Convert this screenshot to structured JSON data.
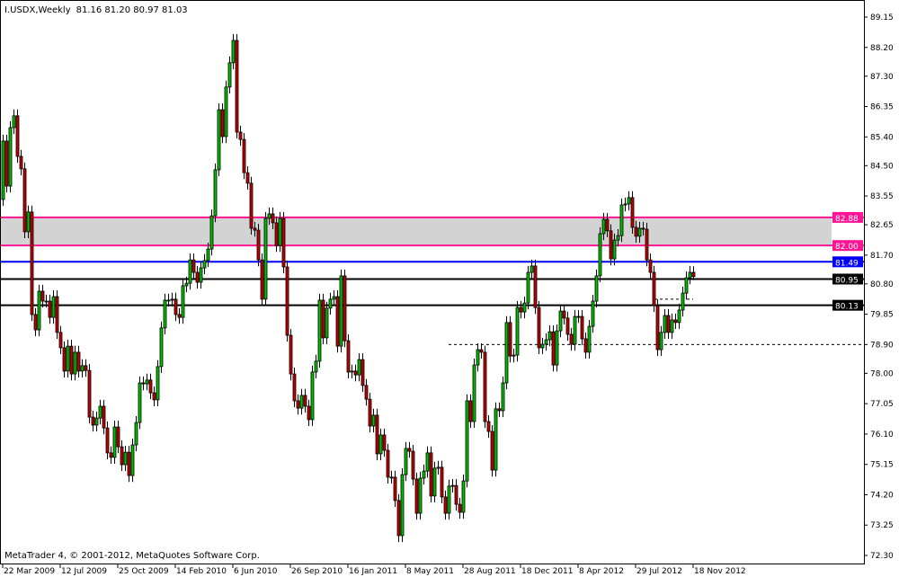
{
  "header": {
    "symbol_timeframe": "I.USDX,Weekly",
    "ohlc_text": "81.16 81.20 80.97 81.03"
  },
  "copyright": "MetaTrader 4, © 2001-2012, MetaQuotes Software Corp.",
  "colors": {
    "bull": "#00c000",
    "bear": "#c00000",
    "resistance_zone": "#d3d3d3",
    "magenta_line": "#ff1493",
    "blue_line": "#0000ff",
    "black_line": "#000000"
  },
  "chart_data": {
    "type": "candlestick",
    "timeframe": "Weekly",
    "ylim": [
      72.3,
      89.15
    ],
    "grid": false,
    "y_ticks": [
      "89.15",
      "88.20",
      "87.30",
      "86.35",
      "85.40",
      "84.50",
      "83.55",
      "82.65",
      "81.70",
      "80.80",
      "79.85",
      "78.90",
      "78.00",
      "77.05",
      "76.10",
      "75.15",
      "74.20",
      "73.25",
      "72.30"
    ],
    "x_ticks": [
      "22 Mar 2009",
      "12 Jul 2009",
      "25 Oct 2009",
      "14 Feb 2010",
      "6 Jun 2010",
      "26 Sep 2010",
      "16 Jan 2011",
      "8 May 2011",
      "28 Aug 2011",
      "18 Dec 2011",
      "8 Apr 2012",
      "29 Jul 2012",
      "18 Nov 2012"
    ],
    "first_open": 83.44,
    "closes": [
      85.27,
      83.86,
      85.69,
      86.06,
      84.79,
      84.4,
      82.43,
      83.05,
      79.84,
      79.36,
      80.57,
      80.26,
      80.26,
      79.75,
      80.4,
      79.28,
      78.8,
      78.07,
      78.85,
      77.98,
      78.66,
      78.07,
      78.24,
      78.09,
      76.63,
      76.38,
      76.6,
      76.97,
      76.29,
      75.51,
      75.37,
      76.32,
      75.7,
      75.14,
      75.53,
      74.8,
      75.76,
      76.46,
      77.7,
      77.67,
      77.79,
      77.39,
      77.17,
      78.21,
      79.42,
      80.29,
      80.29,
      80.32,
      79.84,
      79.75,
      80.74,
      80.82,
      81.55,
      81.16,
      80.85,
      81.3,
      81.53,
      81.89,
      82.93,
      84.37,
      86.25,
      85.41,
      86.96,
      87.72,
      88.42,
      85.55,
      85.32,
      84.28,
      83.95,
      82.54,
      82.48,
      81.55,
      80.32,
      82.85,
      82.99,
      82.71,
      82.0,
      82.85,
      81.33,
      79.19,
      77.98,
      77.14,
      76.91,
      77.31,
      76.97,
      76.55,
      78.04,
      78.38,
      80.29,
      79.11,
      80.04,
      80.32,
      80.4,
      78.85,
      81.05,
      79.02,
      78.04,
      78.07,
      77.95,
      78.43,
      77.62,
      77.19,
      76.35,
      76.69,
      75.48,
      76.07,
      75.59,
      74.75,
      74.75,
      74.02,
      72.92,
      74.83,
      75.65,
      75.56,
      74.69,
      73.62,
      74.72,
      74.94,
      75.51,
      74.16,
      75.03,
      75.06,
      74.13,
      73.62,
      74.47,
      74.49,
      73.9,
      73.65,
      74.63,
      77.14,
      76.49,
      78.26,
      78.74,
      78.66,
      76.49,
      76.18,
      74.97,
      76.89,
      76.83,
      77.7,
      79.59,
      78.54,
      78.57,
      80.06,
      79.92,
      80.2,
      81.16,
      81.36,
      80.06,
      78.8,
      78.91,
      79.05,
      79.3,
      78.26,
      79.33,
      79.95,
      79.73,
      79.22,
      78.91,
      79.78,
      79.78,
      79.08,
      78.66,
      79.47,
      80.26,
      81.05,
      82.37,
      82.82,
      82.46,
      81.58,
      82.17,
      82.31,
      83.27,
      83.3,
      83.5,
      82.57,
      82.29,
      82.54,
      82.51,
      81.55,
      81.16,
      80.12,
      78.74,
      79.28,
      79.81,
      79.28,
      79.67,
      79.59,
      79.98,
      80.51,
      80.99,
      81.16,
      81.03
    ],
    "last_bar": {
      "open": 81.16,
      "high": 81.2,
      "low": 80.97,
      "close": 81.03
    },
    "resistance_zone": [
      82.0,
      82.88
    ],
    "levels": [
      {
        "price": 82.88,
        "label": "82.88",
        "color": "#ff1493"
      },
      {
        "price": 82.0,
        "label": "82.00",
        "color": "#ff1493"
      },
      {
        "price": 81.49,
        "label": "81.49",
        "color": "#0000ff"
      },
      {
        "price": 80.95,
        "label": "80.95",
        "color": "#000000"
      },
      {
        "price": 80.13,
        "label": "80.13",
        "color": "#000000"
      }
    ],
    "dashed_levels": [
      {
        "price": 78.9,
        "from": "28 Aug 2011"
      },
      {
        "price": 80.32,
        "from": "29 Jul 2012"
      }
    ]
  }
}
